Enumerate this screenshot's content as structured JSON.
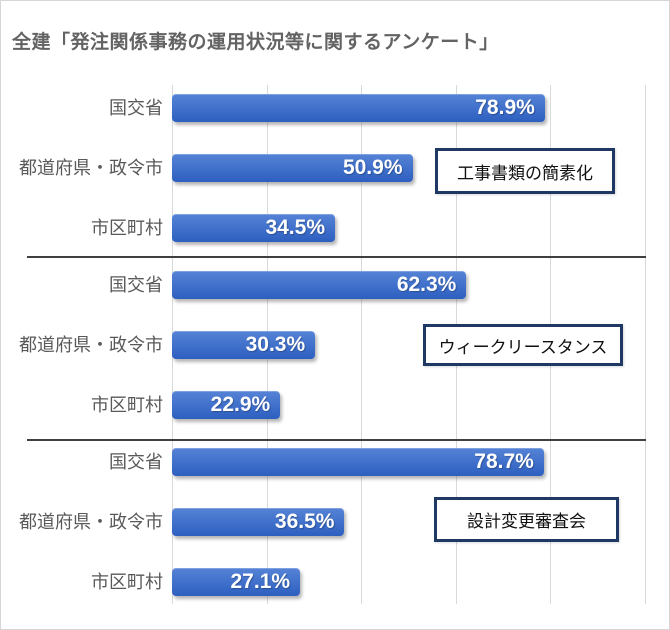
{
  "title": "全建「発注関係事務の運用状況等に関するアンケート」",
  "colors": {
    "bar_top": "#5583d6",
    "bar_bottom": "#2d5fc0",
    "gridline": "#d9d9d9",
    "separator": "#404040",
    "annotation_border": "#1f3864",
    "title_text": "#636363",
    "category_text": "#595959",
    "value_text": "#ffffff"
  },
  "chart_data": {
    "type": "bar",
    "orientation": "horizontal",
    "title": "全建「発注関係事務の運用状況等に関するアンケート」",
    "unit": "%",
    "xlim": [
      0,
      100
    ],
    "x_gridline_step": 20,
    "grid": true,
    "legend": false,
    "categories": [
      "国交省",
      "都道府県・政令市",
      "市区町村"
    ],
    "groups": [
      {
        "annotation": "工事書類の簡素化",
        "bars": [
          {
            "category": "国交省",
            "value": 78.9,
            "label": "78.9%"
          },
          {
            "category": "都道府県・政令市",
            "value": 50.9,
            "label": "50.9%"
          },
          {
            "category": "市区町村",
            "value": 34.5,
            "label": "34.5%"
          }
        ]
      },
      {
        "annotation": "ウィークリースタンス",
        "bars": [
          {
            "category": "国交省",
            "value": 62.3,
            "label": "62.3%"
          },
          {
            "category": "都道府県・政令市",
            "value": 30.3,
            "label": "30.3%"
          },
          {
            "category": "市区町村",
            "value": 22.9,
            "label": "22.9%"
          }
        ]
      },
      {
        "annotation": "設計変更審査会",
        "bars": [
          {
            "category": "国交省",
            "value": 78.7,
            "label": "78.7%"
          },
          {
            "category": "都道府県・政令市",
            "value": 36.5,
            "label": "36.5%"
          },
          {
            "category": "市区町村",
            "value": 27.1,
            "label": "27.1%"
          }
        ]
      }
    ]
  }
}
